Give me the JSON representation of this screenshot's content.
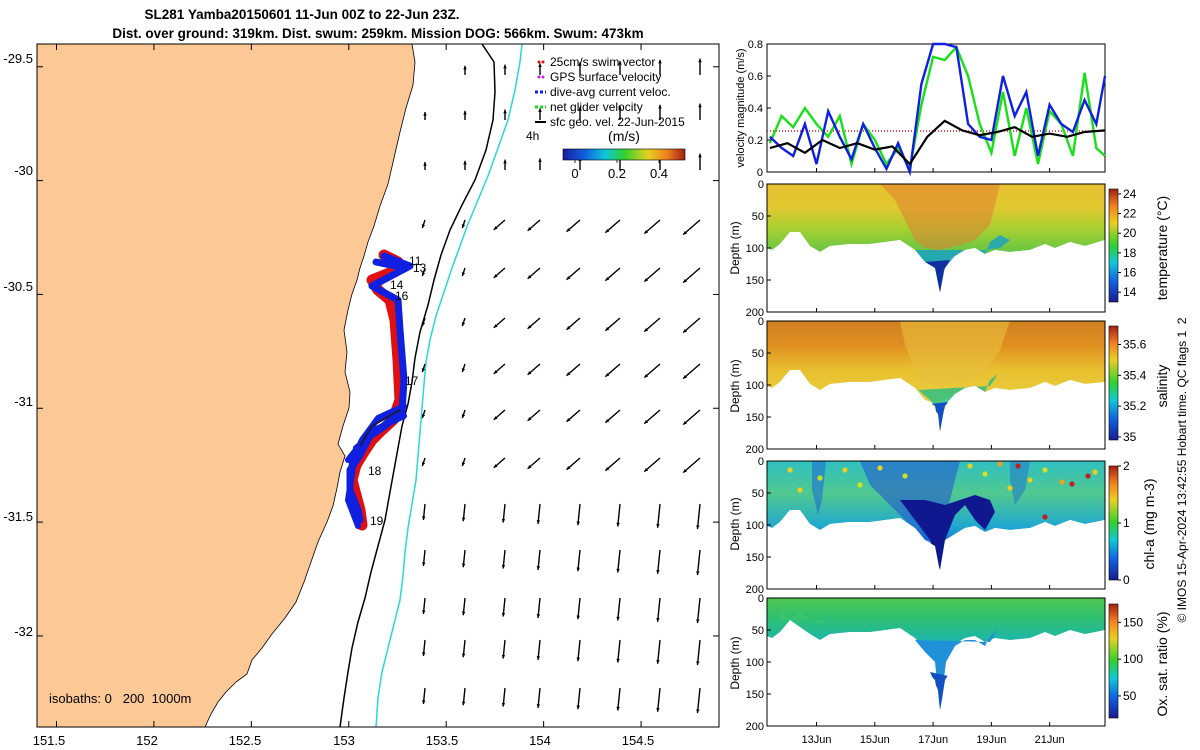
{
  "title": {
    "line1": "SL281 Yamba20150601 11-Jun 00Z to 22-Jun 23Z.",
    "line2": "Dist. over ground: 319km. Dist. swum: 259km. Mission DOG: 566km. Swum: 473km"
  },
  "colors": {
    "land": "#fbc896",
    "red": "#e01010",
    "blue": "#1020e0",
    "green": "#18e018",
    "isobath200": "#000000",
    "isobath1000": "#28d8d8"
  },
  "map": {
    "isobaths_note": "isobaths: 0   200  1000m",
    "lon_ticks": [
      "151.5",
      "152",
      "152.5",
      "153",
      "153.5",
      "154",
      "154.5"
    ],
    "lat_ticks": [
      "-29.5",
      "-30",
      "-30.5",
      "-31",
      "-31.5",
      "-32"
    ],
    "day_labels": [
      "11",
      "13",
      "14",
      "16",
      "17",
      "18",
      "19"
    ],
    "inset_label": "4h"
  },
  "legend": {
    "items": [
      {
        "label": "25cm/s swim vector",
        "color": "#e01010",
        "style": "dot"
      },
      {
        "label": "GPS surface velocity",
        "color": "#d020d0",
        "style": "dot"
      },
      {
        "label": "dive-avg current veloc.",
        "color": "#1020e0",
        "style": "dash"
      },
      {
        "label": "net glider velocity",
        "color": "#18e018",
        "style": "dash"
      },
      {
        "label": "sfc geo. vel. 22-Jun-2015",
        "color": "#000000",
        "style": "line"
      }
    ],
    "colorbar_unit": "(m/s)",
    "colorbar_ticks": [
      "0",
      "0.2",
      "0.4"
    ]
  },
  "panels": {
    "time_ticks": [
      "13Jun",
      "15Jun",
      "17Jun",
      "19Jun",
      "21Jun"
    ],
    "depth_label": "Depth (m)",
    "depth_ticks": [
      "0",
      "50",
      "100",
      "150",
      "200"
    ],
    "speed": {
      "ylabel": "velocity magnitude (m/s)",
      "yticks": [
        "0",
        "0.2",
        "0.4",
        "0.6",
        "0.8"
      ]
    },
    "temperature": {
      "label": "temperature (°C)",
      "ticks": [
        "14",
        "16",
        "18",
        "20",
        "22",
        "24"
      ]
    },
    "salinity": {
      "label": "salinity",
      "ticks": [
        "35",
        "35.2",
        "35.4",
        "35.6"
      ]
    },
    "chla": {
      "label": "chl-a (mg m-3)",
      "ticks": [
        "0",
        "1",
        "2"
      ]
    },
    "oxygen": {
      "label": "Ox. sat. ratio (%)",
      "ticks": [
        "50",
        "100",
        "150"
      ]
    }
  },
  "footer": "© IMOS 15-Apr-2024 13:42:55 Hobart time. QC flags 1  2",
  "chart_data": [
    {
      "type": "scatter",
      "title": "SL281 Yamba20150601 11-Jun 00Z to 22-Jun 23Z.",
      "x_axis": {
        "range": [
          151.4,
          154.9
        ],
        "ticks": [
          151.5,
          152,
          152.5,
          153,
          153.5,
          154,
          154.5
        ]
      },
      "y_axis": {
        "range": [
          -32.4,
          -29.4
        ],
        "ticks": [
          -32,
          -31.5,
          -31,
          -30.5,
          -30,
          -29.5
        ]
      },
      "glider_track": [
        [
          153.1,
          -30.4
        ],
        [
          153.25,
          -30.45
        ],
        [
          153.05,
          -30.5
        ],
        [
          153.2,
          -30.6
        ],
        [
          153.22,
          -30.8
        ],
        [
          153.22,
          -31.0
        ],
        [
          153.1,
          -31.1
        ],
        [
          153.0,
          -31.3
        ],
        [
          153.05,
          -31.5
        ],
        [
          153.1,
          -31.55
        ]
      ],
      "grid": false
    },
    {
      "type": "line",
      "ylabel": "velocity magnitude (m/s)",
      "xlabel": "",
      "x_range": [
        11.3,
        22.9
      ],
      "ylim": [
        0,
        0.8
      ],
      "x_ticks": [
        "13Jun",
        "15Jun",
        "17Jun",
        "19Jun",
        "21Jun"
      ],
      "series": [
        {
          "color": "#18e018",
          "x": [
            11.4,
            11.8,
            12.2,
            12.6,
            13.0,
            13.4,
            13.8,
            14.2,
            14.6,
            15.0,
            15.4,
            15.8,
            16.2,
            16.6,
            17.0,
            17.4,
            17.8,
            18.2,
            18.6,
            19.0,
            19.4,
            19.8,
            20.2,
            20.6,
            21.0,
            21.4,
            21.8,
            22.2,
            22.6,
            22.9
          ],
          "y": [
            0.18,
            0.35,
            0.28,
            0.4,
            0.3,
            0.22,
            0.35,
            0.05,
            0.3,
            0.2,
            0.05,
            0.15,
            0.02,
            0.42,
            0.72,
            0.7,
            0.78,
            0.6,
            0.3,
            0.12,
            0.5,
            0.1,
            0.4,
            0.05,
            0.38,
            0.3,
            0.1,
            0.62,
            0.15,
            0.1
          ]
        },
        {
          "color": "#1020e0",
          "x": [
            11.4,
            11.8,
            12.2,
            12.6,
            13.0,
            13.4,
            13.8,
            14.2,
            14.6,
            15.0,
            15.4,
            15.8,
            16.2,
            16.6,
            17.0,
            17.4,
            17.8,
            18.2,
            18.6,
            19.0,
            19.4,
            19.8,
            20.2,
            20.6,
            21.0,
            21.4,
            21.8,
            22.2,
            22.6,
            22.9
          ],
          "y": [
            0.22,
            0.15,
            0.1,
            0.3,
            0.05,
            0.38,
            0.22,
            0.08,
            0.3,
            0.15,
            0.02,
            0.18,
            0.0,
            0.55,
            0.8,
            0.8,
            0.78,
            0.3,
            0.22,
            0.2,
            0.6,
            0.35,
            0.5,
            0.1,
            0.42,
            0.3,
            0.25,
            0.45,
            0.3,
            0.6
          ]
        },
        {
          "color": "#000000",
          "x": [
            11.4,
            12.0,
            12.6,
            13.2,
            13.8,
            14.4,
            15.0,
            15.6,
            16.2,
            16.8,
            17.4,
            18.0,
            18.6,
            19.2,
            19.8,
            20.4,
            21.0,
            21.6,
            22.2,
            22.9
          ],
          "y": [
            0.15,
            0.18,
            0.12,
            0.2,
            0.15,
            0.18,
            0.14,
            0.16,
            0.05,
            0.22,
            0.32,
            0.26,
            0.23,
            0.25,
            0.28,
            0.22,
            0.24,
            0.22,
            0.25,
            0.26
          ]
        }
      ]
    },
    {
      "type": "heatmap",
      "ylabel": "Depth (m)",
      "colorbar_label": "temperature (°C)",
      "ylim": [
        200,
        0
      ],
      "clim": [
        13,
        24.5
      ],
      "x_ticks": [
        "13Jun",
        "15Jun",
        "17Jun",
        "19Jun",
        "21Jun"
      ]
    },
    {
      "type": "heatmap",
      "ylabel": "Depth (m)",
      "colorbar_label": "salinity",
      "ylim": [
        200,
        0
      ],
      "clim": [
        34.98,
        35.72
      ],
      "x_ticks": [
        "13Jun",
        "15Jun",
        "17Jun",
        "19Jun",
        "21Jun"
      ]
    },
    {
      "type": "heatmap",
      "ylabel": "Depth (m)",
      "colorbar_label": "chl-a (mg m-3)",
      "ylim": [
        200,
        0
      ],
      "clim": [
        0,
        2
      ],
      "x_ticks": [
        "13Jun",
        "15Jun",
        "17Jun",
        "19Jun",
        "21Jun"
      ]
    },
    {
      "type": "heatmap",
      "ylabel": "Depth (m)",
      "colorbar_label": "Ox. sat. ratio (%)",
      "ylim": [
        200,
        0
      ],
      "clim": [
        20,
        175
      ],
      "x_ticks": [
        "13Jun",
        "15Jun",
        "17Jun",
        "19Jun",
        "21Jun"
      ]
    }
  ]
}
